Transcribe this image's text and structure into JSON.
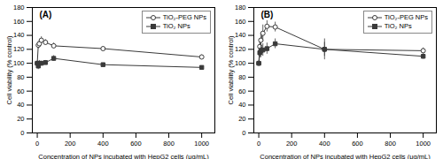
{
  "chart_data": [
    {
      "type": "line",
      "title": "(A)",
      "x": [
        0,
        6.25,
        12.5,
        25,
        50,
        100,
        400,
        1000
      ],
      "xlabel": "Concentration of NPs incubated with HepG2 cells (μg/mL)",
      "ylabel": "Cell viability (% control)",
      "xlim": [
        -30,
        1080
      ],
      "xticks": [
        0,
        200,
        400,
        600,
        800,
        1000
      ],
      "ylim": [
        0,
        180
      ],
      "yticks": [
        0,
        20,
        40,
        60,
        80,
        100,
        120,
        140,
        160,
        180
      ],
      "grid": false,
      "legend": "upper right",
      "series": [
        {
          "name": "TiO₂-PEG NPs",
          "color": "#3a3a3a",
          "marker": "open_circle",
          "line_style": "solid",
          "values": [
            100,
            126,
            128,
            133,
            130,
            125,
            121,
            109
          ],
          "errors": [
            0,
            5,
            5,
            5,
            4,
            4,
            3,
            3
          ]
        },
        {
          "name": "TiO₂ NPs",
          "color": "#3a3a3a",
          "marker": "square",
          "line_style": "solid",
          "values": [
            100,
            96,
            100,
            100,
            101,
            107,
            98,
            94
          ],
          "errors": [
            0,
            5,
            4,
            3,
            3,
            4,
            2,
            2
          ]
        }
      ]
    },
    {
      "type": "line",
      "title": "(B)",
      "x": [
        0,
        6.25,
        12.5,
        25,
        50,
        100,
        400,
        1000
      ],
      "xlabel": "Concentration of NPs incubated with HepG2 cells (μg/mL)",
      "ylabel": "Cell viability (% control)",
      "xlim": [
        -30,
        1080
      ],
      "xticks": [
        0,
        200,
        400,
        600,
        800,
        1000
      ],
      "ylim": [
        0,
        180
      ],
      "yticks": [
        0,
        20,
        40,
        60,
        80,
        100,
        120,
        140,
        160,
        180
      ],
      "grid": false,
      "legend": "upper right",
      "series": [
        {
          "name": "TiO₂-PEG NPs",
          "color": "#3a3a3a",
          "marker": "open_circle",
          "line_style": "solid",
          "values": [
            100,
            124,
            133,
            143,
            153,
            152,
            120,
            118
          ],
          "errors": [
            0,
            8,
            10,
            12,
            8,
            7,
            15,
            4
          ]
        },
        {
          "name": "TiO₂ NPs",
          "color": "#3a3a3a",
          "marker": "square",
          "line_style": "solid",
          "values": [
            100,
            115,
            118,
            119,
            121,
            128,
            120,
            110
          ],
          "errors": [
            0,
            7,
            10,
            9,
            8,
            7,
            10,
            4
          ]
        }
      ]
    }
  ]
}
